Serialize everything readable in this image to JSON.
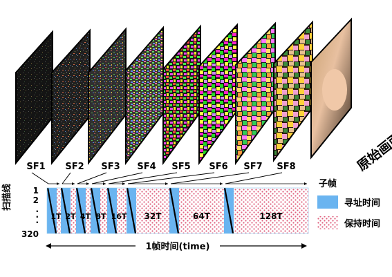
{
  "subfields": [
    "SF1",
    "SF2",
    "SF3",
    "SF4",
    "SF5",
    "SF6",
    "SF7",
    "SF8"
  ],
  "original_image_label": "原始画面",
  "y_axis_label": "扫描线",
  "row_labels": [
    "1",
    "2",
    "·",
    "·",
    "·",
    "320"
  ],
  "hold_labels": [
    "1T",
    "2T",
    "4T",
    "8T",
    "16T",
    "32T",
    "64T",
    "128T"
  ],
  "hold_weights": [
    1,
    2,
    4,
    8,
    16,
    32,
    64,
    128
  ],
  "time_axis_label": "1帧时间(time)",
  "legend": {
    "title": "子帧",
    "items": [
      {
        "label": "寻址时间",
        "color": "#6ab4f0",
        "pattern": "solid"
      },
      {
        "label": "保持时间",
        "color": "#e0607e",
        "pattern": "dots"
      }
    ]
  },
  "colors": {
    "address": "#6ab4f0",
    "hold_dot": "#e0607e",
    "frame_border": "#000000"
  }
}
